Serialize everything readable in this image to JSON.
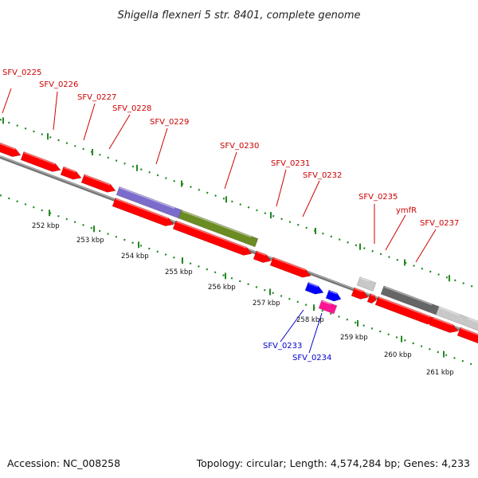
{
  "title": "Shigella flexneri 5 str. 8401, complete genome",
  "footer": {
    "accession": "Accession: NC_008258",
    "summary": "Topology: circular; Length: 4,574,284 bp; Genes: 4,233"
  },
  "colors": {
    "label_red": "#cc0000",
    "label_blue": "#0000cc",
    "gene_red": "#ff0000",
    "gene_purple": "#7b6ccc",
    "gene_olive": "#6b8c23",
    "gene_blue": "#0000ff",
    "gene_magenta": "#ff1493",
    "gene_light_gray": "#c8c8c8",
    "gene_dark_gray": "#666666",
    "backbone": "#777777",
    "ticks": "#228822"
  },
  "gene_labels": [
    {
      "text": "SFV_0225",
      "color": "red"
    },
    {
      "text": "SFV_0226",
      "color": "red"
    },
    {
      "text": "SFV_0227",
      "color": "red"
    },
    {
      "text": "SFV_0228",
      "color": "red"
    },
    {
      "text": "SFV_0229",
      "color": "red"
    },
    {
      "text": "SFV_0230",
      "color": "red"
    },
    {
      "text": "SFV_0231",
      "color": "red"
    },
    {
      "text": "SFV_0232",
      "color": "red"
    },
    {
      "text": "SFV_0235",
      "color": "red"
    },
    {
      "text": "ymfR",
      "color": "red"
    },
    {
      "text": "SFV_0237",
      "color": "red"
    },
    {
      "text": "SFV_0233",
      "color": "blue"
    },
    {
      "text": "SFV_0234",
      "color": "blue"
    }
  ],
  "kbp_labels": [
    "252 kbp",
    "253 kbp",
    "254 kbp",
    "255 kbp",
    "256 kbp",
    "257 kbp",
    "258 kbp",
    "259 kbp",
    "260 kbp",
    "261 kbp"
  ]
}
